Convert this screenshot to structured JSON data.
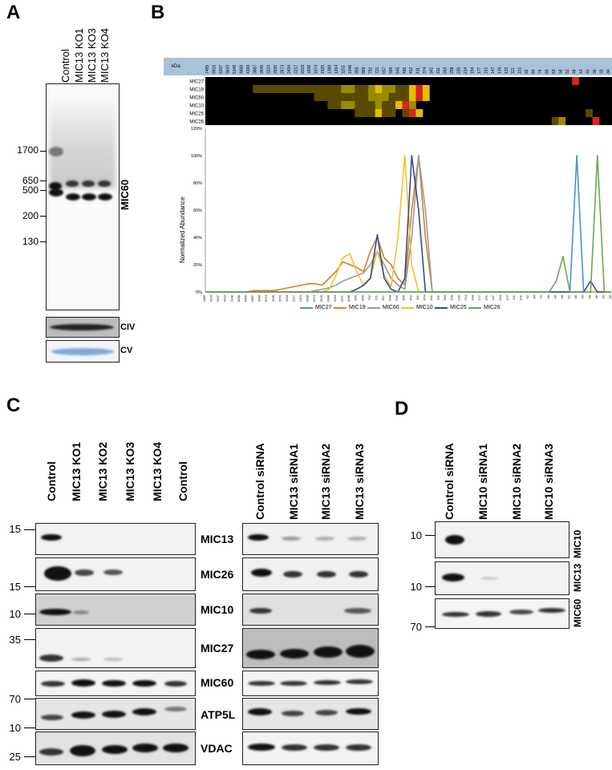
{
  "panels": {
    "A": "A",
    "B": "B",
    "C": "C",
    "D": "D"
  },
  "panelA": {
    "lanes": [
      "Control",
      "MIC13 KO1",
      "MIC13 KO3",
      "MIC13 KO4"
    ],
    "markers": [
      "1700",
      "650",
      "500",
      "200",
      "130"
    ],
    "main_label": "MIC60",
    "sub_labels": [
      "CIV",
      "CV"
    ]
  },
  "panelB": {
    "kda_label": "kDa",
    "header_values": [
      "7485",
      "6916",
      "6207",
      "5633",
      "5148",
      "4688",
      "4369",
      "3887",
      "3540",
      "3224",
      "2936",
      "2673",
      "2434",
      "2217",
      "2019",
      "1838",
      "1674",
      "1525",
      "1388",
      "1264",
      "1151",
      "1048",
      "955",
      "869",
      "792",
      "721",
      "657",
      "598",
      "545",
      "496",
      "452",
      "411",
      "374",
      "341",
      "311",
      "283",
      "258",
      "235",
      "214",
      "194",
      "177",
      "161",
      "147",
      "134",
      "122",
      "111",
      "101",
      "92",
      "84",
      "76",
      "69",
      "63",
      "58",
      "52",
      "48",
      "43",
      "40",
      "36",
      "33",
      "30"
    ],
    "heatmap_rows": [
      "MIC27",
      "MIC19",
      "MIC60",
      "MIC10",
      "MIC25",
      "MIC26"
    ],
    "y_axis_label": "Normalized Abundance",
    "y_ticks": [
      "0%",
      "20%",
      "40%",
      "60%",
      "80%",
      "100%",
      "120%"
    ]
  },
  "chart_data": {
    "type": "line",
    "title": "",
    "xlabel": "",
    "ylabel": "Normalized Abundance",
    "ylim": [
      0,
      120
    ],
    "x": [
      "7485",
      "6916",
      "6207",
      "5633",
      "5148",
      "4688",
      "4369",
      "3887",
      "3540",
      "3224",
      "2936",
      "2673",
      "2434",
      "2217",
      "2019",
      "1838",
      "1674",
      "1525",
      "1388",
      "1264",
      "1151",
      "1048",
      "955",
      "869",
      "792",
      "721",
      "657",
      "598",
      "545",
      "496",
      "452",
      "411",
      "374",
      "341",
      "311",
      "283",
      "258",
      "235",
      "214",
      "194",
      "177",
      "161",
      "147",
      "134",
      "122",
      "111",
      "101",
      "92",
      "84",
      "76",
      "69",
      "63",
      "58",
      "52",
      "48",
      "43",
      "40",
      "36",
      "33",
      "30"
    ],
    "series": [
      {
        "name": "MIC27",
        "color": "#4e8fd0",
        "values": [
          0,
          0,
          0,
          0,
          0,
          0,
          0,
          0,
          0,
          0,
          0,
          0,
          0,
          0,
          0,
          0,
          0,
          0,
          0,
          0,
          0,
          0,
          0,
          0,
          0,
          0,
          0,
          0,
          0,
          0,
          0,
          0,
          0,
          0,
          0,
          0,
          0,
          0,
          0,
          0,
          0,
          0,
          0,
          0,
          0,
          0,
          0,
          0,
          0,
          0,
          0,
          0,
          0,
          0,
          100,
          0,
          0,
          0,
          0,
          0
        ]
      },
      {
        "name": "MIC19",
        "color": "#e07b2e",
        "values": [
          0,
          0,
          0,
          0,
          0,
          0,
          0,
          1,
          1,
          1,
          1,
          2,
          3,
          4,
          5,
          6,
          6,
          5,
          10,
          15,
          22,
          20,
          18,
          15,
          30,
          40,
          25,
          20,
          10,
          5,
          60,
          100,
          40,
          0,
          0,
          0,
          0,
          0,
          0,
          0,
          0,
          0,
          0,
          0,
          0,
          0,
          0,
          0,
          0,
          0,
          0,
          0,
          0,
          0,
          0,
          0,
          0,
          0,
          0,
          0
        ]
      },
      {
        "name": "MIC60",
        "color": "#9a9a9a",
        "values": [
          0,
          0,
          0,
          0,
          0,
          0,
          0,
          0,
          0,
          0,
          0,
          0,
          0,
          0,
          0,
          0,
          1,
          2,
          3,
          5,
          8,
          10,
          12,
          14,
          20,
          30,
          20,
          10,
          5,
          2,
          40,
          100,
          60,
          0,
          0,
          0,
          0,
          0,
          0,
          0,
          0,
          0,
          0,
          0,
          0,
          0,
          0,
          0,
          0,
          0,
          0,
          0,
          0,
          0,
          0,
          0,
          0,
          0,
          0,
          0
        ]
      },
      {
        "name": "MIC10",
        "color": "#f2c12e",
        "values": [
          0,
          0,
          0,
          0,
          0,
          0,
          0,
          0,
          0,
          0,
          0,
          0,
          0,
          0,
          0,
          0,
          0,
          0,
          2,
          12,
          25,
          28,
          15,
          5,
          10,
          30,
          12,
          4,
          40,
          100,
          20,
          0,
          0,
          0,
          0,
          0,
          0,
          0,
          0,
          0,
          0,
          0,
          0,
          0,
          0,
          0,
          0,
          0,
          0,
          0,
          0,
          0,
          0,
          0,
          0,
          0,
          0,
          0,
          0,
          0
        ]
      },
      {
        "name": "MIC25",
        "color": "#2e4e8f",
        "values": [
          0,
          0,
          0,
          0,
          0,
          0,
          0,
          0,
          0,
          0,
          0,
          0,
          0,
          0,
          0,
          0,
          0,
          0,
          0,
          0,
          0,
          0,
          2,
          5,
          10,
          42,
          10,
          2,
          0,
          10,
          100,
          60,
          0,
          0,
          0,
          0,
          0,
          0,
          0,
          0,
          0,
          0,
          0,
          0,
          0,
          0,
          0,
          0,
          0,
          0,
          0,
          0,
          0,
          0,
          0,
          0,
          8,
          0,
          0,
          0
        ]
      },
      {
        "name": "MIC26",
        "color": "#6aa84f",
        "values": [
          0,
          0,
          0,
          0,
          0,
          0,
          0,
          0,
          0,
          0,
          0,
          0,
          0,
          0,
          0,
          0,
          0,
          0,
          0,
          0,
          0,
          0,
          0,
          0,
          0,
          0,
          0,
          0,
          0,
          0,
          0,
          0,
          0,
          0,
          0,
          0,
          0,
          0,
          0,
          0,
          0,
          0,
          0,
          0,
          0,
          0,
          0,
          0,
          0,
          0,
          0,
          8,
          26,
          0,
          0,
          0,
          0,
          100,
          0,
          0
        ]
      }
    ]
  },
  "panelC": {
    "lanes_left": [
      "Control",
      "MIC13 KO1",
      "MIC13 KO2",
      "MIC13 KO3",
      "MIC13 KO4",
      "Control"
    ],
    "lanes_right": [
      "Control siRNA",
      "MIC13 siRNA1",
      "MIC13 siRNA2",
      "MIC13 siRNA3"
    ],
    "row_labels": [
      "MIC13",
      "MIC26",
      "MIC10",
      "MIC27",
      "MIC60",
      "ATP5L",
      "VDAC"
    ],
    "markers": [
      "15",
      "15",
      "10",
      "35",
      "70",
      "10",
      "25"
    ]
  },
  "panelD": {
    "lanes": [
      "Control siRNA",
      "MIC10 siRNA1",
      "MIC10 siRNA2",
      "MIC10 siRNA3"
    ],
    "row_labels": [
      "MIC10",
      "MIC13",
      "MIC60"
    ],
    "markers": [
      "10",
      "10",
      "70"
    ]
  }
}
